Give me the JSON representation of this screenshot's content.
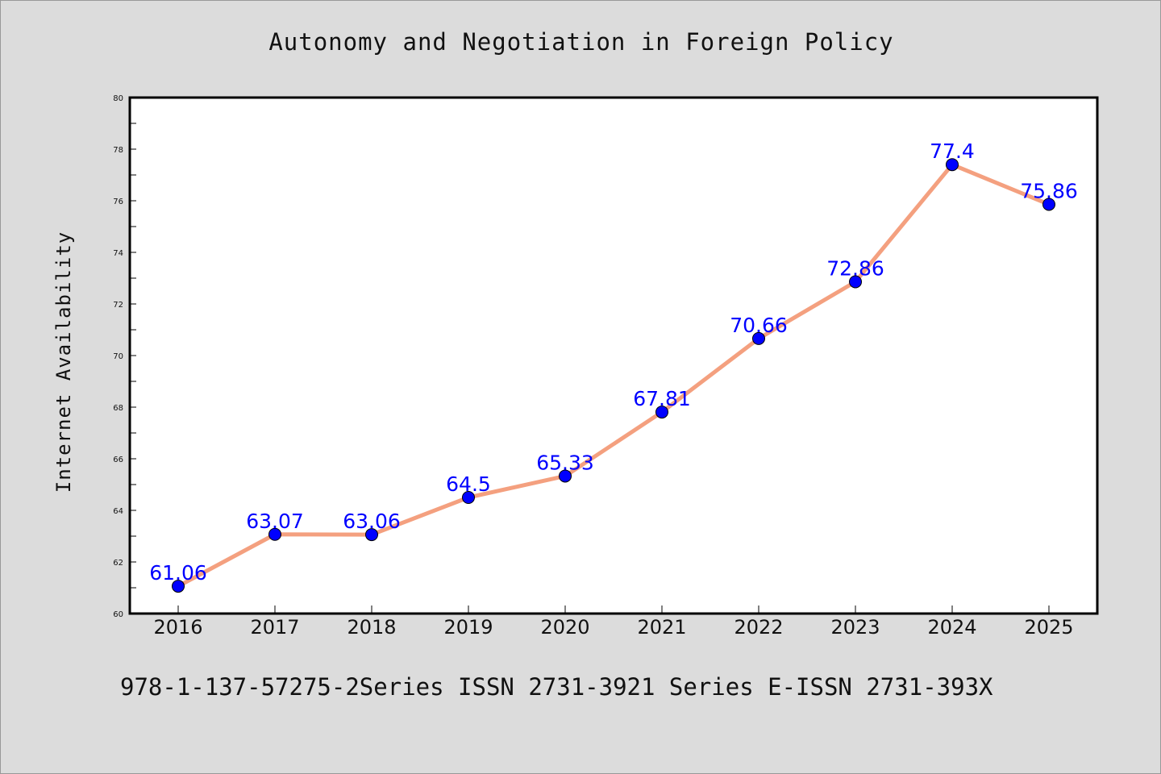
{
  "chart_data": {
    "type": "line",
    "title": "Autonomy and Negotiation in Foreign Policy",
    "xlabel": "",
    "ylabel": "Internet Availability",
    "categories": [
      "2016",
      "2017",
      "2018",
      "2019",
      "2020",
      "2021",
      "2022",
      "2023",
      "2024",
      "2025"
    ],
    "values": [
      61.06,
      63.07,
      63.06,
      64.5,
      65.33,
      67.81,
      70.66,
      72.86,
      77.4,
      75.86
    ],
    "data_labels": [
      "61.06",
      "63.07",
      "63.06",
      "64.5",
      "65.33",
      "67.81",
      "70.66",
      "72.86",
      "77.4",
      "75.86"
    ],
    "ylim": [
      60,
      80
    ],
    "yticks": [
      60,
      62,
      64,
      66,
      68,
      70,
      72,
      74,
      76,
      78,
      80
    ],
    "grid": false,
    "line_color": "#f4a07f",
    "marker_color": "#0000ff",
    "label_color": "#0000ff"
  },
  "footer": {
    "text": "978-1-137-57275-2Series ISSN 2731-3921 Series E-ISSN 2731-393X"
  }
}
